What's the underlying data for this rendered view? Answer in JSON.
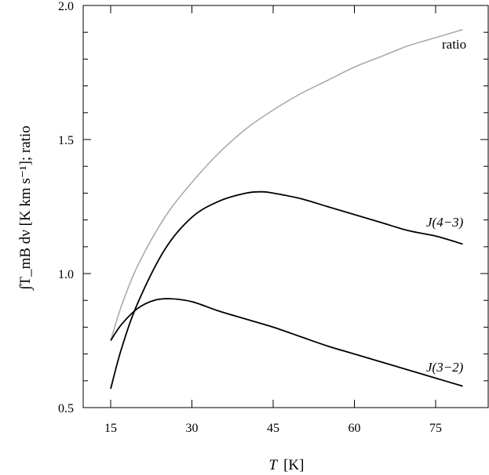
{
  "chart_data": {
    "type": "line",
    "title": "",
    "xlabel": "T  [K]",
    "xlabel_var": "T",
    "xlabel_unit": "[K]",
    "ylabel": "∫T_mB dν  [K km s⁻¹];   ratio",
    "xlim": [
      10,
      87
    ],
    "ylim": [
      0.5,
      2.0
    ],
    "xticks": [
      15,
      30,
      45,
      60,
      75
    ],
    "xtick_labels": [
      "15",
      "30",
      "45",
      "60",
      "75"
    ],
    "yticks": [
      0.5,
      1.0,
      1.5,
      2.0
    ],
    "ytick_labels": [
      "0.5",
      "1.0",
      "1.5",
      "2.0"
    ],
    "grid": false,
    "series": [
      {
        "name": "ratio",
        "label": "ratio",
        "color": "#aaaaaa",
        "x": [
          15,
          17,
          20,
          25,
          30,
          35,
          40,
          45,
          50,
          55,
          60,
          65,
          70,
          75,
          80
        ],
        "y": [
          0.75,
          0.88,
          1.03,
          1.21,
          1.34,
          1.45,
          1.54,
          1.61,
          1.67,
          1.72,
          1.77,
          1.81,
          1.85,
          1.88,
          1.91
        ]
      },
      {
        "name": "J(4-3)",
        "label": "J(4−3)",
        "color": "#000000",
        "x": [
          15,
          17,
          20,
          25,
          30,
          35,
          40,
          43,
          45,
          50,
          55,
          60,
          65,
          70,
          75,
          80
        ],
        "y": [
          0.57,
          0.72,
          0.89,
          1.09,
          1.21,
          1.27,
          1.3,
          1.305,
          1.3,
          1.28,
          1.25,
          1.22,
          1.19,
          1.16,
          1.14,
          1.11
        ]
      },
      {
        "name": "J(3-2)",
        "label": "J(3−2)",
        "color": "#000000",
        "x": [
          15,
          17,
          20,
          23,
          26,
          30,
          35,
          40,
          45,
          50,
          55,
          60,
          65,
          70,
          75,
          80
        ],
        "y": [
          0.75,
          0.81,
          0.87,
          0.9,
          0.906,
          0.895,
          0.86,
          0.83,
          0.8,
          0.765,
          0.73,
          0.7,
          0.67,
          0.64,
          0.61,
          0.58
        ]
      }
    ]
  }
}
